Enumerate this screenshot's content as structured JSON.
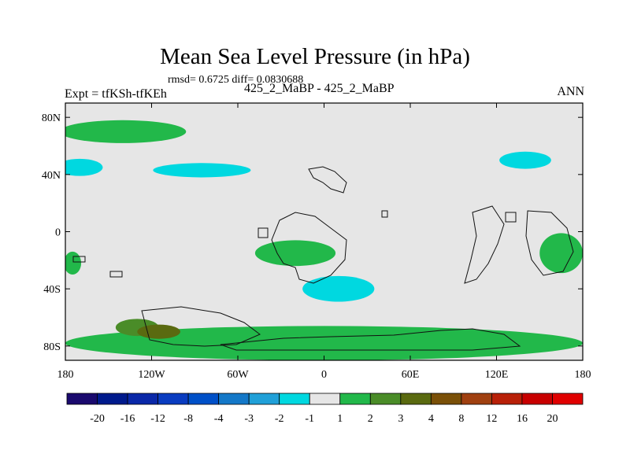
{
  "chart_data": {
    "type": "heatmap",
    "title": "Mean Sea Level Pressure (in hPa)",
    "stats_line": "rmsd= 0.6725 diff= 0.0830688",
    "experiment_label": "Expt = tfKSh-tfKEh",
    "subtitle": "425_2_MaBP - 425_2_MaBP",
    "season": "ANN",
    "x_range": [
      -180,
      180
    ],
    "y_range": [
      -90,
      90
    ],
    "x_ticks": [
      {
        "value": -180,
        "label": "180"
      },
      {
        "value": -120,
        "label": "120W"
      },
      {
        "value": -60,
        "label": "60W"
      },
      {
        "value": 0,
        "label": "0"
      },
      {
        "value": 60,
        "label": "60E"
      },
      {
        "value": 120,
        "label": "120E"
      },
      {
        "value": 180,
        "label": "180"
      }
    ],
    "y_ticks": [
      {
        "value": 80,
        "label": "80N"
      },
      {
        "value": 40,
        "label": "40N"
      },
      {
        "value": 0,
        "label": "0"
      },
      {
        "value": -40,
        "label": "40S"
      },
      {
        "value": -80,
        "label": "80S"
      }
    ],
    "levels": [
      "-20",
      "-16",
      "-12",
      "-8",
      "-4",
      "-3",
      "-2",
      "-1",
      "1",
      "2",
      "3",
      "4",
      "8",
      "12",
      "16",
      "20"
    ],
    "colors": [
      "#1a0a6e",
      "#001a8c",
      "#0a28a8",
      "#0a3cc0",
      "#0050c8",
      "#1478c8",
      "#20a0d8",
      "#00d8e0",
      "#e6e6e6",
      "#22b84a",
      "#4a8c28",
      "#5a6a10",
      "#7a5008",
      "#a04010",
      "#b82008",
      "#c80000",
      "#e00000"
    ],
    "background_color": "#e6e6e6",
    "regions": [
      {
        "category": "1 to 2",
        "lon": -140,
        "lat": 70,
        "rx": 44,
        "ry": 8
      },
      {
        "category": "1 to 2",
        "lon": -20,
        "lat": -15,
        "rx": 28,
        "ry": 9
      },
      {
        "category": "1 to 2",
        "lon": 165,
        "lat": -15,
        "rx": 15,
        "ry": 14
      },
      {
        "category": "1 to 2",
        "lon": -175,
        "lat": -22,
        "rx": 6,
        "ry": 8
      },
      {
        "category": "1 to 2",
        "lon": 0,
        "lat": -78,
        "rx": 180,
        "ry": 12
      },
      {
        "category": "-2 to -1",
        "lon": -170,
        "lat": 45,
        "rx": 16,
        "ry": 6
      },
      {
        "category": "-2 to -1",
        "lon": -85,
        "lat": 43,
        "rx": 34,
        "ry": 5
      },
      {
        "category": "-2 to -1",
        "lon": 10,
        "lat": -40,
        "rx": 25,
        "ry": 9
      },
      {
        "category": "-2 to -1",
        "lon": 140,
        "lat": 50,
        "rx": 18,
        "ry": 6
      },
      {
        "category": "2 to 3",
        "lon": -130,
        "lat": -67,
        "rx": 15,
        "ry": 6
      },
      {
        "category": "3 to 4",
        "lon": -115,
        "lat": -70,
        "rx": 15,
        "ry": 5
      }
    ]
  }
}
